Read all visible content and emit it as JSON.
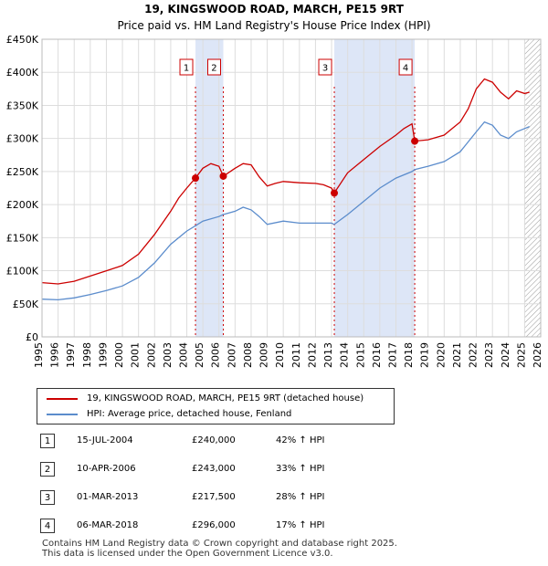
{
  "chart_data": {
    "type": "line",
    "title": "19, KINGSWOOD ROAD, MARCH, PE15 9RT",
    "subtitle": "Price paid vs. HM Land Registry's House Price Index (HPI)",
    "xlabel": "",
    "ylabel": "",
    "xlim": [
      1995,
      2026
    ],
    "ylim": [
      0,
      450000
    ],
    "yticks": [
      0,
      50000,
      100000,
      150000,
      200000,
      250000,
      300000,
      350000,
      400000,
      450000
    ],
    "ytick_labels": [
      "£0",
      "£50K",
      "£100K",
      "£150K",
      "£200K",
      "£250K",
      "£300K",
      "£350K",
      "£400K",
      "£450K"
    ],
    "xticks": [
      1995,
      1996,
      1997,
      1998,
      1999,
      2000,
      2001,
      2002,
      2003,
      2004,
      2005,
      2006,
      2007,
      2008,
      2009,
      2010,
      2011,
      2012,
      2013,
      2014,
      2015,
      2016,
      2017,
      2018,
      2019,
      2020,
      2021,
      2022,
      2023,
      2024,
      2025,
      2026
    ],
    "series": [
      {
        "name": "19, KINGSWOOD ROAD, MARCH, PE15 9RT (detached house)",
        "color": "#cc0000",
        "x": [
          1995.0,
          1996.0,
          1997.0,
          1998.0,
          1999.0,
          2000.0,
          2001.0,
          2002.0,
          2003.0,
          2003.5,
          2004.0,
          2004.54,
          2005.0,
          2005.5,
          2006.0,
          2006.27,
          2007.0,
          2007.5,
          2008.0,
          2008.5,
          2009.0,
          2009.5,
          2010.0,
          2011.0,
          2012.0,
          2012.5,
          2013.0,
          2013.17,
          2014.0,
          2015.0,
          2016.0,
          2017.0,
          2017.5,
          2018.0,
          2018.17,
          2019.0,
          2020.0,
          2020.5,
          2021.0,
          2021.5,
          2022.0,
          2022.5,
          2023.0,
          2023.5,
          2024.0,
          2024.5,
          2025.0,
          2025.3
        ],
        "y": [
          82000,
          80000,
          84000,
          92000,
          100000,
          108000,
          125000,
          155000,
          190000,
          210000,
          225000,
          240000,
          255000,
          262000,
          258000,
          243000,
          255000,
          262000,
          260000,
          242000,
          228000,
          232000,
          235000,
          233000,
          232000,
          230000,
          225000,
          217500,
          248000,
          268000,
          288000,
          305000,
          315000,
          322000,
          296000,
          298000,
          305000,
          315000,
          325000,
          345000,
          375000,
          390000,
          385000,
          370000,
          360000,
          372000,
          368000,
          370000
        ]
      },
      {
        "name": "HPI: Average price, detached house, Fenland",
        "color": "#5b8ccc",
        "x": [
          1995.0,
          1996.0,
          1997.0,
          1998.0,
          1999.0,
          2000.0,
          2001.0,
          2002.0,
          2003.0,
          2004.0,
          2004.54,
          2005.0,
          2006.0,
          2006.27,
          2007.0,
          2007.5,
          2008.0,
          2008.5,
          2009.0,
          2010.0,
          2011.0,
          2012.0,
          2013.0,
          2013.17,
          2014.0,
          2015.0,
          2016.0,
          2017.0,
          2018.0,
          2018.17,
          2019.0,
          2020.0,
          2021.0,
          2022.0,
          2022.5,
          2023.0,
          2023.5,
          2024.0,
          2024.5,
          2025.0,
          2025.3
        ],
        "y": [
          57000,
          56000,
          59000,
          64000,
          70000,
          77000,
          90000,
          112000,
          140000,
          160000,
          168000,
          175000,
          182000,
          185000,
          190000,
          196000,
          192000,
          182000,
          170000,
          175000,
          172000,
          172000,
          172000,
          170000,
          185000,
          205000,
          225000,
          240000,
          250000,
          253000,
          258000,
          265000,
          280000,
          310000,
          325000,
          320000,
          305000,
          300000,
          310000,
          315000,
          318000
        ]
      }
    ],
    "transactions": [
      {
        "num": "1",
        "x": 2004.54,
        "y": 240000
      },
      {
        "num": "2",
        "x": 2006.27,
        "y": 243000
      },
      {
        "num": "3",
        "x": 2013.17,
        "y": 217500
      },
      {
        "num": "4",
        "x": 2018.17,
        "y": 296000
      }
    ],
    "shaded_spans": [
      [
        2004.54,
        2006.27
      ],
      [
        2013.17,
        2018.17
      ]
    ],
    "hatched_from": 2025.0
  },
  "legend": {
    "red_label": "19, KINGSWOOD ROAD, MARCH, PE15 9RT (detached house)",
    "blue_label": "HPI: Average price, detached house, Fenland"
  },
  "table": [
    {
      "num": "1",
      "date": "15-JUL-2004",
      "price": "£240,000",
      "hpi": "42% ↑ HPI"
    },
    {
      "num": "2",
      "date": "10-APR-2006",
      "price": "£243,000",
      "hpi": "33% ↑ HPI"
    },
    {
      "num": "3",
      "date": "01-MAR-2013",
      "price": "£217,500",
      "hpi": "28% ↑ HPI"
    },
    {
      "num": "4",
      "date": "06-MAR-2018",
      "price": "£296,000",
      "hpi": "17% ↑ HPI"
    }
  ],
  "footer": {
    "line1": "Contains HM Land Registry data © Crown copyright and database right 2025.",
    "line2": "This data is licensed under the Open Government Licence v3.0."
  }
}
